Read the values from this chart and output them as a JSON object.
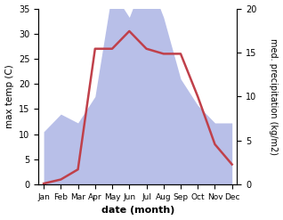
{
  "months": [
    "Jan",
    "Feb",
    "Mar",
    "Apr",
    "May",
    "Jun",
    "Jul",
    "Aug",
    "Sep",
    "Oct",
    "Nov",
    "Dec"
  ],
  "temperature": [
    0.2,
    1.0,
    3.0,
    27.0,
    27.0,
    30.5,
    27.0,
    26.0,
    26.0,
    17.5,
    8.0,
    4.0
  ],
  "precipitation": [
    6.0,
    8.0,
    7.0,
    10.0,
    22.0,
    19.0,
    24.0,
    19.0,
    12.0,
    9.0,
    7.0,
    7.0
  ],
  "temp_ylim": [
    0,
    35
  ],
  "precip_ylim": [
    0,
    20
  ],
  "temp_color": "#c0404a",
  "precip_fill_color": "#b8bfe8",
  "xlabel": "date (month)",
  "ylabel_left": "max temp (C)",
  "ylabel_right": "med. precipitation (kg/m2)",
  "temp_yticks": [
    0,
    5,
    10,
    15,
    20,
    25,
    30,
    35
  ],
  "precip_yticks": [
    0,
    5,
    10,
    15,
    20
  ],
  "figsize": [
    3.18,
    2.47
  ],
  "dpi": 100
}
